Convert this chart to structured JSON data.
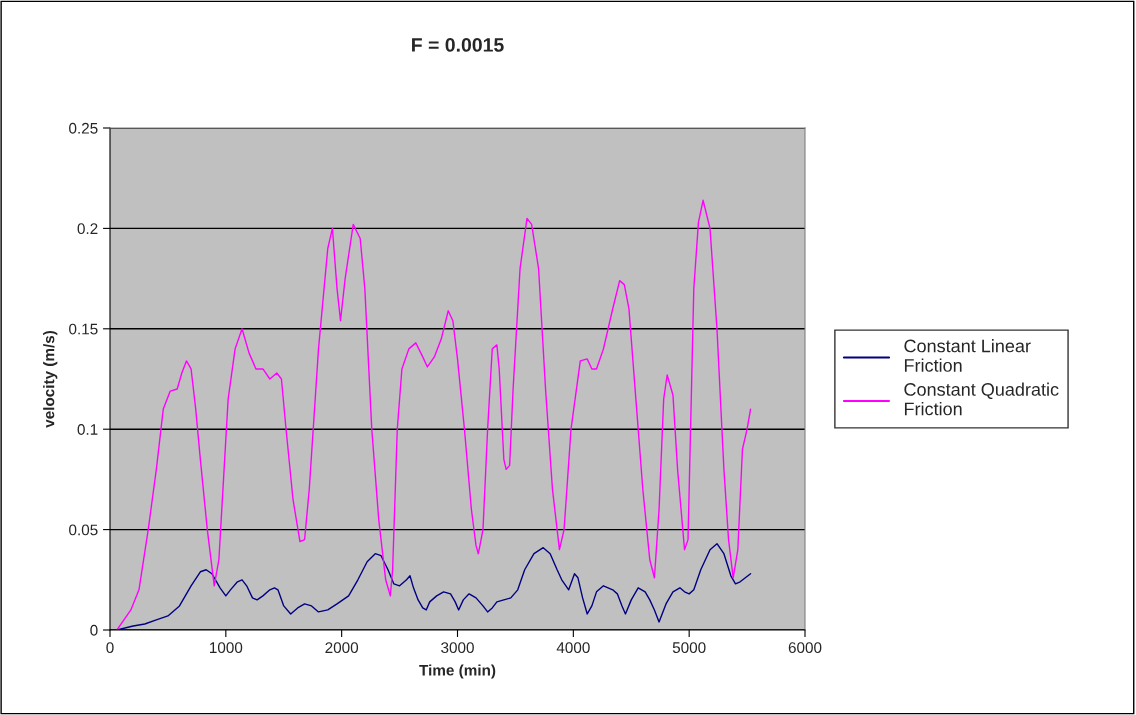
{
  "chart_data": {
    "type": "line",
    "title": "F = 0.0015",
    "xlabel": "Time (min)",
    "ylabel": "velocity (m/s)",
    "xlim": [
      0,
      6000
    ],
    "xticks": [
      0,
      1000,
      2000,
      3000,
      4000,
      5000,
      6000
    ],
    "ylim": [
      0,
      0.25
    ],
    "yticks": [
      0,
      0.05,
      0.1,
      0.15,
      0.2,
      0.25
    ],
    "grid": "y",
    "legend": "right",
    "marker": "none",
    "line_style": "solid",
    "series": [
      {
        "name": "Constant Linear Friction",
        "color": "#000080",
        "x": [
          60,
          200,
          300,
          400,
          500,
          600,
          700,
          780,
          830,
          880,
          950,
          1000,
          1040,
          1100,
          1140,
          1180,
          1230,
          1270,
          1320,
          1380,
          1420,
          1450,
          1500,
          1560,
          1620,
          1680,
          1740,
          1800,
          1880,
          1960,
          2060,
          2140,
          2220,
          2290,
          2340,
          2400,
          2450,
          2500,
          2560,
          2590,
          2620,
          2660,
          2700,
          2730,
          2760,
          2820,
          2880,
          2940,
          2980,
          3010,
          3050,
          3100,
          3160,
          3220,
          3260,
          3300,
          3340,
          3400,
          3460,
          3520,
          3580,
          3660,
          3740,
          3800,
          3860,
          3900,
          3960,
          4010,
          4040,
          4080,
          4120,
          4160,
          4200,
          4260,
          4300,
          4340,
          4380,
          4420,
          4450,
          4500,
          4560,
          4620,
          4660,
          4700,
          4740,
          4800,
          4860,
          4920,
          4960,
          5000,
          5040,
          5100,
          5180,
          5240,
          5300,
          5360,
          5400,
          5440,
          5530
        ],
        "values": [
          0,
          0.002,
          0.003,
          0.005,
          0.007,
          0.012,
          0.022,
          0.029,
          0.03,
          0.028,
          0.021,
          0.017,
          0.02,
          0.024,
          0.025,
          0.022,
          0.016,
          0.015,
          0.017,
          0.02,
          0.021,
          0.02,
          0.012,
          0.008,
          0.011,
          0.013,
          0.012,
          0.009,
          0.01,
          0.013,
          0.017,
          0.025,
          0.034,
          0.038,
          0.037,
          0.03,
          0.023,
          0.022,
          0.025,
          0.027,
          0.021,
          0.015,
          0.011,
          0.01,
          0.014,
          0.017,
          0.019,
          0.018,
          0.014,
          0.01,
          0.015,
          0.018,
          0.016,
          0.012,
          0.009,
          0.011,
          0.014,
          0.015,
          0.016,
          0.02,
          0.03,
          0.038,
          0.041,
          0.038,
          0.03,
          0.025,
          0.02,
          0.028,
          0.026,
          0.016,
          0.008,
          0.012,
          0.019,
          0.022,
          0.021,
          0.02,
          0.018,
          0.012,
          0.008,
          0.015,
          0.021,
          0.019,
          0.015,
          0.01,
          0.004,
          0.013,
          0.019,
          0.021,
          0.019,
          0.018,
          0.02,
          0.03,
          0.04,
          0.043,
          0.038,
          0.027,
          0.023,
          0.024,
          0.028
        ]
      },
      {
        "name": "Constant Quadratic Friction",
        "color": "#ff00ff",
        "x": [
          60,
          180,
          250,
          330,
          400,
          460,
          520,
          580,
          620,
          660,
          700,
          740,
          780,
          840,
          900,
          940,
          980,
          1020,
          1080,
          1140,
          1200,
          1260,
          1320,
          1380,
          1440,
          1480,
          1520,
          1580,
          1640,
          1680,
          1720,
          1800,
          1880,
          1920,
          1960,
          1990,
          2030,
          2100,
          2160,
          2200,
          2260,
          2320,
          2380,
          2420,
          2440,
          2480,
          2520,
          2580,
          2640,
          2700,
          2740,
          2800,
          2860,
          2920,
          2960,
          3000,
          3060,
          3120,
          3160,
          3180,
          3220,
          3260,
          3300,
          3340,
          3360,
          3400,
          3420,
          3450,
          3480,
          3540,
          3600,
          3640,
          3700,
          3760,
          3820,
          3880,
          3920,
          3980,
          4060,
          4120,
          4160,
          4200,
          4260,
          4340,
          4400,
          4440,
          4480,
          4540,
          4600,
          4660,
          4700,
          4740,
          4780,
          4810,
          4860,
          4900,
          4960,
          4990,
          5040,
          5080,
          5120,
          5180,
          5240,
          5300,
          5340,
          5380,
          5420,
          5460,
          5500,
          5530
        ],
        "values": [
          0,
          0.01,
          0.02,
          0.05,
          0.08,
          0.11,
          0.119,
          0.12,
          0.128,
          0.134,
          0.13,
          0.11,
          0.085,
          0.05,
          0.022,
          0.035,
          0.075,
          0.115,
          0.14,
          0.15,
          0.138,
          0.13,
          0.13,
          0.125,
          0.128,
          0.125,
          0.1,
          0.065,
          0.044,
          0.045,
          0.07,
          0.14,
          0.19,
          0.2,
          0.17,
          0.154,
          0.175,
          0.202,
          0.195,
          0.17,
          0.1,
          0.055,
          0.025,
          0.017,
          0.03,
          0.1,
          0.13,
          0.14,
          0.143,
          0.136,
          0.131,
          0.136,
          0.145,
          0.159,
          0.154,
          0.135,
          0.1,
          0.06,
          0.042,
          0.038,
          0.05,
          0.1,
          0.14,
          0.142,
          0.13,
          0.085,
          0.08,
          0.082,
          0.12,
          0.18,
          0.205,
          0.202,
          0.18,
          0.12,
          0.07,
          0.04,
          0.05,
          0.1,
          0.134,
          0.135,
          0.13,
          0.13,
          0.14,
          0.16,
          0.174,
          0.172,
          0.16,
          0.115,
          0.07,
          0.035,
          0.026,
          0.06,
          0.115,
          0.127,
          0.117,
          0.08,
          0.04,
          0.045,
          0.17,
          0.203,
          0.214,
          0.2,
          0.15,
          0.08,
          0.045,
          0.026,
          0.04,
          0.09,
          0.1,
          0.11
        ]
      }
    ]
  }
}
